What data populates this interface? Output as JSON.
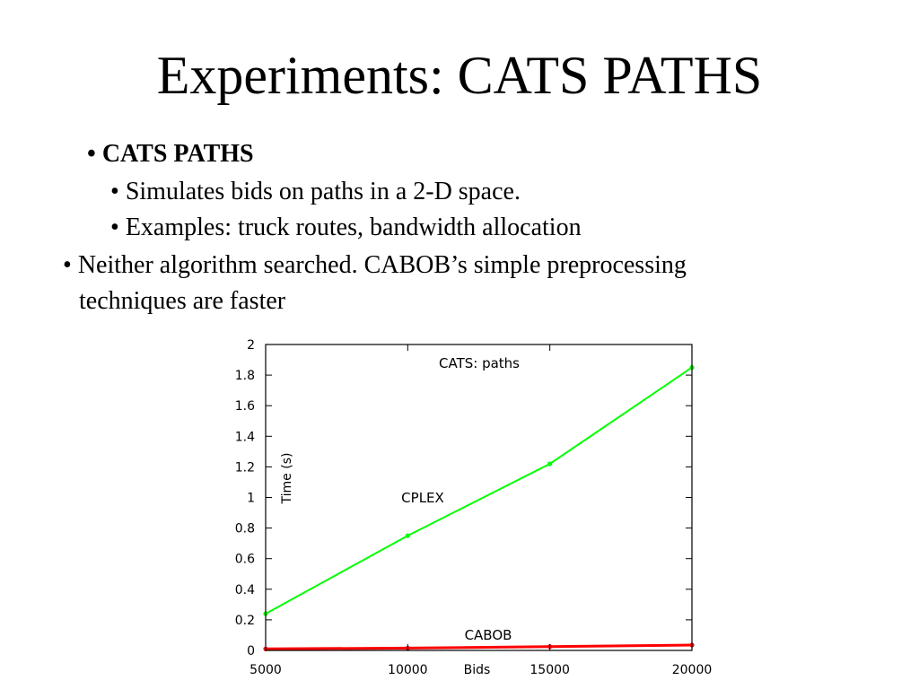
{
  "slide": {
    "title": "Experiments: CATS PATHS",
    "bullets": [
      {
        "text": "CATS PATHS",
        "bold": true,
        "level": 0
      },
      {
        "text": "Simulates bids on paths in a 2-D space.",
        "bold": false,
        "level": 1
      },
      {
        "text": "Examples: truck routes, bandwidth allocation",
        "bold": false,
        "level": 1
      },
      {
        "text": "Neither algorithm searched. CABOB’s simple preprocessing",
        "bold": false,
        "level": 0
      },
      {
        "text": "techniques are faster",
        "bold": false,
        "level": 0,
        "continuation": true
      }
    ],
    "bullet_glyph": "•"
  },
  "chart_data": {
    "type": "line",
    "title": "CATS: paths",
    "xlabel": "Bids",
    "ylabel": "Time (s)",
    "xlim": [
      5000,
      20000
    ],
    "ylim": [
      0,
      2
    ],
    "x_ticks": [
      "5000",
      "10000",
      "15000",
      "20000"
    ],
    "y_ticks": [
      "0",
      "0.2",
      "0.4",
      "0.6",
      "0.8",
      "1",
      "1.2",
      "1.4",
      "1.6",
      "1.8",
      "2"
    ],
    "grid": false,
    "series": [
      {
        "name": "CPLEX",
        "color": "#00ff00",
        "x": [
          5000,
          10000,
          15000,
          20000
        ],
        "y": [
          0.24,
          0.75,
          1.22,
          1.85
        ]
      },
      {
        "name": "CABOB",
        "color": "#ff0000",
        "x": [
          5000,
          10000,
          15000,
          20000
        ],
        "y": [
          0.01,
          0.015,
          0.025,
          0.035
        ]
      }
    ]
  }
}
